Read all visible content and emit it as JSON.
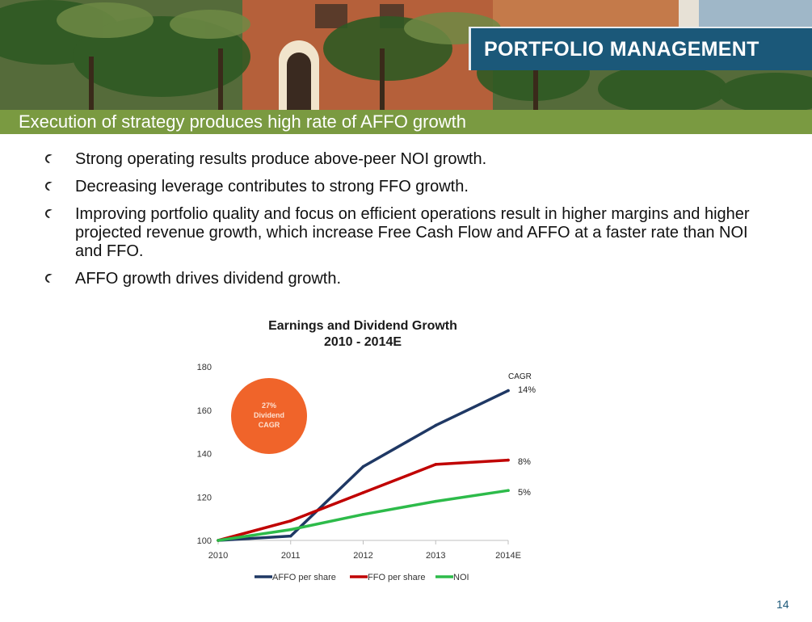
{
  "header": {
    "title": "PORTFOLIO MANAGEMENT",
    "subtitle": "Execution of strategy produces high rate of AFFO growth"
  },
  "bullets": [
    "Strong operating results produce above-peer NOI growth.",
    "Decreasing leverage contributes to strong FFO growth.",
    "Improving portfolio quality and focus on efficient operations result in higher margins and higher projected revenue growth, which increase Free Cash Flow and AFFO at a faster rate than NOI and FFO.",
    "AFFO growth drives dividend growth."
  ],
  "chart_data": {
    "type": "line",
    "title": "Earnings and Dividend Growth",
    "subtitle": "2010 - 2014E",
    "categories": [
      "2010",
      "2011",
      "2012",
      "2013",
      "2014E"
    ],
    "ylim": [
      100,
      180
    ],
    "yticks": [
      "100",
      "120",
      "140",
      "160",
      "180"
    ],
    "grid": false,
    "legend_position": "bottom",
    "series": [
      {
        "name": "AFFO per share",
        "color": "#1f3864",
        "values": [
          100,
          102,
          134,
          153,
          169
        ],
        "cagr": "14%"
      },
      {
        "name": "FFO per share",
        "color": "#c00000",
        "values": [
          100,
          109,
          122,
          135,
          137
        ],
        "cagr": "8%"
      },
      {
        "name": "NOI",
        "color": "#2dbb4a",
        "values": [
          100,
          105,
          112,
          118,
          123
        ],
        "cagr": "5%"
      }
    ],
    "cagr_header": "CAGR",
    "callout": {
      "lines": [
        "27%",
        "Dividend",
        "CAGR"
      ],
      "color": "#f0642a"
    }
  },
  "footer": {
    "page_number": "14"
  }
}
